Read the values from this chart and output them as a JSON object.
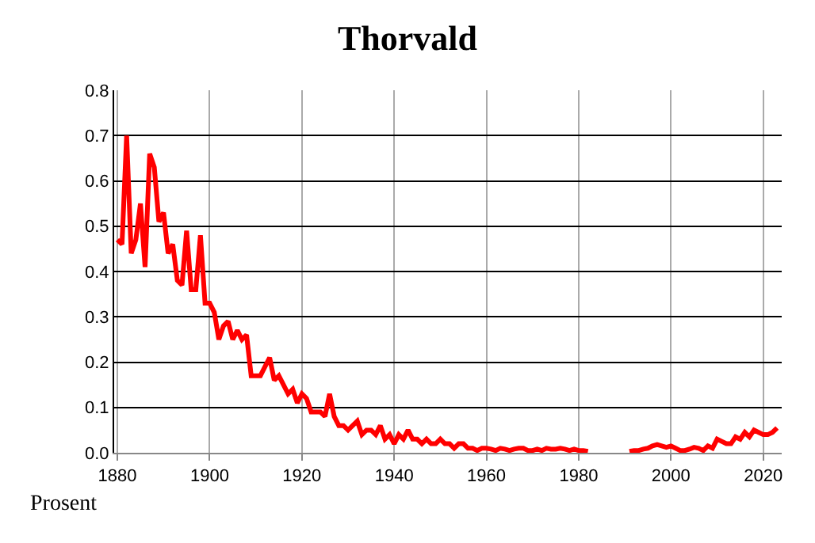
{
  "chart_data": {
    "type": "line",
    "title": "Thorvald",
    "ylabel": "Prosent",
    "x": [
      1880,
      1881,
      1882,
      1883,
      1884,
      1885,
      1886,
      1887,
      1888,
      1889,
      1890,
      1891,
      1892,
      1893,
      1894,
      1895,
      1896,
      1897,
      1898,
      1899,
      1900,
      1901,
      1902,
      1903,
      1904,
      1905,
      1906,
      1907,
      1908,
      1909,
      1910,
      1911,
      1912,
      1913,
      1914,
      1915,
      1916,
      1917,
      1918,
      1919,
      1920,
      1921,
      1922,
      1923,
      1924,
      1925,
      1926,
      1927,
      1928,
      1929,
      1930,
      1931,
      1932,
      1933,
      1934,
      1935,
      1936,
      1937,
      1938,
      1939,
      1940,
      1941,
      1942,
      1943,
      1944,
      1945,
      1946,
      1947,
      1948,
      1949,
      1950,
      1951,
      1952,
      1953,
      1954,
      1955,
      1956,
      1957,
      1958,
      1959,
      1960,
      1961,
      1962,
      1963,
      1964,
      1965,
      1966,
      1967,
      1968,
      1969,
      1970,
      1971,
      1972,
      1973,
      1974,
      1975,
      1976,
      1977,
      1978,
      1979,
      1980,
      1981,
      1982,
      1983,
      1984,
      1985,
      1986,
      1987,
      1988,
      1989,
      1990,
      1991,
      1992,
      1993,
      1994,
      1995,
      1996,
      1997,
      1998,
      1999,
      2000,
      2001,
      2002,
      2003,
      2004,
      2005,
      2006,
      2007,
      2008,
      2009,
      2010,
      2011,
      2012,
      2013,
      2014,
      2015,
      2016,
      2017,
      2018,
      2019,
      2020,
      2021,
      2022,
      2023
    ],
    "series": [
      {
        "color": "#ff0000",
        "values": [
          0.47,
          0.46,
          0.7,
          0.44,
          0.47,
          0.55,
          0.41,
          0.66,
          0.63,
          0.51,
          0.53,
          0.44,
          0.46,
          0.38,
          0.37,
          0.49,
          0.36,
          0.36,
          0.48,
          0.33,
          0.33,
          0.31,
          0.25,
          0.28,
          0.29,
          0.25,
          0.27,
          0.25,
          0.26,
          0.17,
          0.17,
          0.17,
          0.19,
          0.21,
          0.16,
          0.17,
          0.15,
          0.13,
          0.14,
          0.11,
          0.13,
          0.12,
          0.09,
          0.09,
          0.09,
          0.08,
          0.13,
          0.08,
          0.06,
          0.06,
          0.05,
          0.06,
          0.07,
          0.04,
          0.05,
          0.05,
          0.04,
          0.06,
          0.03,
          0.04,
          0.02,
          0.04,
          0.03,
          0.05,
          0.03,
          0.03,
          0.02,
          0.03,
          0.02,
          0.02,
          0.03,
          0.02,
          0.02,
          0.01,
          0.02,
          0.02,
          0.01,
          0.01,
          0.005,
          0.01,
          0.01,
          0.008,
          0.005,
          0.01,
          0.008,
          0.005,
          0.008,
          0.01,
          0.01,
          0.005,
          0.005,
          0.008,
          0.005,
          0.01,
          0.008,
          0.008,
          0.01,
          0.008,
          0.005,
          0.008,
          0.005,
          0.005,
          0.003,
          null,
          null,
          null,
          null,
          null,
          null,
          null,
          null,
          0.003,
          0.005,
          0.005,
          0.008,
          0.01,
          0.015,
          0.018,
          0.015,
          0.012,
          0.015,
          0.01,
          0.005,
          0.005,
          0.008,
          0.012,
          0.01,
          0.005,
          0.015,
          0.01,
          0.03,
          0.025,
          0.02,
          0.02,
          0.035,
          0.03,
          0.045,
          0.035,
          0.05,
          0.045,
          0.04,
          0.04,
          0.045,
          0.055
        ]
      }
    ],
    "xlim": [
      1879.3,
      2024
    ],
    "xticks": [
      1880,
      1900,
      1920,
      1940,
      1960,
      1980,
      2000,
      2020
    ],
    "ylim": [
      0,
      0.8
    ],
    "yticks": [
      {
        "value": 0,
        "label": "0.0"
      },
      0.1,
      0.2,
      0.3,
      0.4,
      0.5,
      0.6,
      0.7,
      0.8
    ],
    "grid": true,
    "legend": false,
    "marker": "none",
    "line_style": "solid"
  }
}
